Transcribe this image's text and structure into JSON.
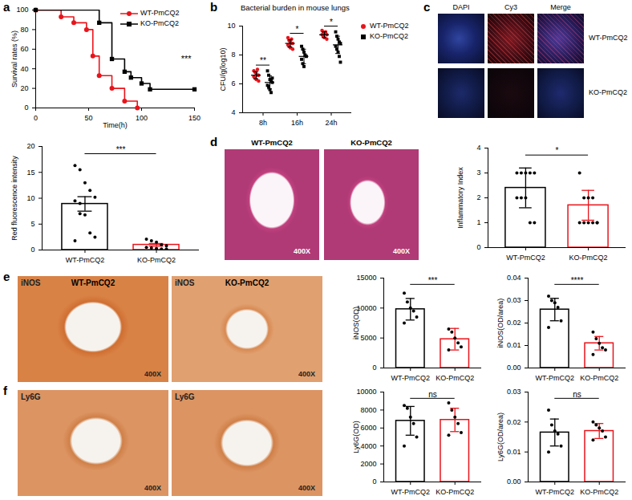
{
  "chart_data": [
    {
      "panel": "a",
      "type": "step",
      "x_label": "Time(h)",
      "y_label": "Survival rates (%)",
      "xlim": [
        0,
        150
      ],
      "xticks": [
        0,
        50,
        100,
        150
      ],
      "ylim": [
        0,
        100
      ],
      "yticks": [
        0,
        20,
        40,
        60,
        80,
        100
      ],
      "legend": "top-right",
      "annotation": "***",
      "series": [
        {
          "name": "WT-PmCQ2",
          "color": "#e8141b",
          "marker": "circle",
          "x": [
            0,
            24,
            36,
            48,
            54,
            60,
            72,
            84,
            96
          ],
          "values": [
            100,
            93,
            87,
            80,
            53,
            33,
            20,
            7,
            0
          ]
        },
        {
          "name": "KO-PmCQ2",
          "color": "#000000",
          "marker": "square",
          "x": [
            0,
            60,
            72,
            84,
            90,
            100,
            108,
            150
          ],
          "values": [
            100,
            87,
            50,
            37,
            31,
            25,
            19,
            19
          ]
        }
      ]
    },
    {
      "panel": "b",
      "type": "scatter",
      "title": "Bacterial burden in mouse lungs",
      "y_label": "CFU/g(log10)",
      "categories": [
        "8h",
        "16h",
        "24h"
      ],
      "ylim": [
        4,
        10
      ],
      "yticks": [
        4,
        6,
        8,
        10
      ],
      "legend": "top-right",
      "annotations": [
        "**",
        "*",
        "*"
      ],
      "series": [
        {
          "name": "WT-PmCQ2",
          "color": "#e8141b",
          "marker": "circle",
          "values": [
            6.6,
            8.8,
            9.4
          ],
          "errors": [
            0.25,
            0.25,
            0.2
          ],
          "points": [
            [
              6.9,
              6.8,
              6.7,
              6.6,
              6.6,
              6.5,
              6.4,
              6.3,
              7.0,
              6.2
            ],
            [
              9.2,
              9.0,
              8.9,
              8.8,
              8.8,
              8.7,
              8.6,
              8.5,
              9.1,
              8.4
            ],
            [
              9.7,
              9.6,
              9.5,
              9.5,
              9.4,
              9.4,
              9.3,
              9.2,
              9.6,
              9.1
            ]
          ]
        },
        {
          "name": "KO-PmCQ2",
          "color": "#000000",
          "marker": "square",
          "values": [
            6.1,
            7.9,
            8.7
          ],
          "errors": [
            0.45,
            0.5,
            0.6
          ],
          "points": [
            [
              6.9,
              6.6,
              6.3,
              6.2,
              6.1,
              5.9,
              5.8,
              5.6,
              5.4,
              6.4
            ],
            [
              8.6,
              8.4,
              8.2,
              8.0,
              7.9,
              7.7,
              7.4,
              7.2
            ],
            [
              9.6,
              9.3,
              9.1,
              8.9,
              8.8,
              8.6,
              8.4,
              8.2,
              7.9,
              7.5
            ]
          ]
        }
      ]
    },
    {
      "type": "bar",
      "y_label": "Red fluorescence intensity",
      "categories": [
        "WT-PmCQ2",
        "KO-PmCQ2"
      ],
      "ylim": [
        0,
        20
      ],
      "yticks": [
        0,
        5,
        10,
        15,
        20
      ],
      "values": [
        8.9,
        1.0
      ],
      "errors": [
        1.4,
        0.25
      ],
      "points": [
        [
          16.3,
          15.5,
          13.0,
          11.5,
          10.2,
          9.5,
          7.0,
          6.8,
          3.3,
          2.5,
          1.8,
          9.0
        ],
        [
          2.1,
          1.8,
          1.5,
          1.0,
          0.8,
          0.5,
          0.4,
          0.3,
          0.2,
          0.2
        ]
      ],
      "colors": [
        "#000000",
        "#e8141b"
      ],
      "annotation": "***"
    },
    {
      "type": "bar",
      "y_label": "Inflammatory Index",
      "categories": [
        "WT-PmCQ2",
        "KO-PmCQ2"
      ],
      "ylim": [
        0,
        4
      ],
      "yticks": [
        0,
        1,
        2,
        3,
        4
      ],
      "values": [
        2.4,
        1.7
      ],
      "errors": [
        0.8,
        0.6
      ],
      "points": [
        [
          3,
          3,
          3,
          3,
          3,
          2,
          2,
          2,
          1,
          1
        ],
        [
          3,
          2,
          2,
          2,
          1,
          1,
          1,
          1,
          1,
          1
        ]
      ],
      "colors": [
        "#000000",
        "#e8141b"
      ],
      "annotation": "*"
    },
    {
      "type": "bar",
      "y_label": "iNOS(OD)",
      "categories": [
        "WT-PmCQ2",
        "KO-PmCQ2"
      ],
      "ylim": [
        0,
        15000
      ],
      "yticks": [
        0,
        5000,
        10000,
        15000
      ],
      "values": [
        9800,
        4800
      ],
      "errors": [
        1800,
        1800
      ],
      "points": [
        [
          12500,
          11000,
          10000,
          9500,
          8500,
          7500
        ],
        [
          6500,
          6000,
          5000,
          4200,
          3500,
          3000
        ]
      ],
      "colors": [
        "#000000",
        "#e8141b"
      ],
      "annotation": "***"
    },
    {
      "type": "bar",
      "y_label": "iNOS(OD/area)",
      "categories": [
        "WT-PmCQ2",
        "KO-PmCQ2"
      ],
      "ylim": [
        0,
        0.04
      ],
      "yticks": [
        {
          "value": 0,
          "label": "0.00"
        },
        {
          "value": 0.01,
          "label": "0.01"
        },
        {
          "value": 0.02,
          "label": "0.02"
        },
        {
          "value": 0.03,
          "label": "0.03"
        },
        {
          "value": 0.04,
          "label": "0.04"
        }
      ],
      "values": [
        0.026,
        0.011
      ],
      "errors": [
        0.005,
        0.003
      ],
      "points": [
        [
          0.032,
          0.03,
          0.029,
          0.027,
          0.021,
          0.018
        ],
        [
          0.016,
          0.013,
          0.011,
          0.009,
          0.008,
          0.006
        ]
      ],
      "colors": [
        "#000000",
        "#e8141b"
      ],
      "annotation": "****"
    },
    {
      "type": "bar",
      "y_label": "Ly6G(OD)",
      "categories": [
        "WT-PmCQ2",
        "KO-PmCQ2"
      ],
      "ylim": [
        0,
        10000
      ],
      "yticks": [
        0,
        2000,
        4000,
        6000,
        8000,
        10000
      ],
      "values": [
        6800,
        6900
      ],
      "errors": [
        1600,
        1300
      ],
      "points": [
        [
          8500,
          8200,
          7200,
          6500,
          5000,
          4000
        ],
        [
          8800,
          8000,
          7200,
          6500,
          5500,
          5200
        ]
      ],
      "colors": [
        "#000000",
        "#e8141b"
      ],
      "annotation": "ns"
    },
    {
      "type": "bar",
      "y_label": "Ly6G(OD/area)",
      "categories": [
        "WT-PmCQ2",
        "KO-PmCQ2"
      ],
      "ylim": [
        0,
        0.03
      ],
      "yticks": [
        {
          "value": 0,
          "label": "0.00"
        },
        {
          "value": 0.01,
          "label": "0.01"
        },
        {
          "value": 0.02,
          "label": "0.02"
        },
        {
          "value": 0.03,
          "label": "0.03"
        }
      ],
      "values": [
        0.0165,
        0.017
      ],
      "errors": [
        0.0045,
        0.0025
      ],
      "points": [
        [
          0.024,
          0.019,
          0.017,
          0.016,
          0.012,
          0.01
        ],
        [
          0.02,
          0.019,
          0.018,
          0.017,
          0.015,
          0.014
        ]
      ],
      "colors": [
        "#000000",
        "#e8141b"
      ],
      "annotation": "ns"
    }
  ],
  "images": [
    {
      "panel": "c",
      "columns": [
        "DAPI",
        "Cy3",
        "Merge"
      ],
      "rows": [
        "WT-PmCQ2",
        "KO-PmCQ2"
      ]
    },
    {
      "panel": "d",
      "items": [
        {
          "label": "WT-PmCQ2",
          "magnification": "400X"
        },
        {
          "label": "KO-PmCQ2",
          "magnification": "400X"
        }
      ]
    },
    {
      "panel": "e",
      "items": [
        {
          "label": "WT-PmCQ2",
          "stain": "iNOS",
          "magnification": "400X"
        },
        {
          "label": "KO-PmCQ2",
          "stain": "iNOS",
          "magnification": "400X"
        }
      ]
    },
    {
      "panel": "f",
      "items": [
        {
          "stain": "Ly6G",
          "magnification": "400X"
        },
        {
          "stain": "Ly6G",
          "magnification": "400X"
        }
      ]
    }
  ]
}
